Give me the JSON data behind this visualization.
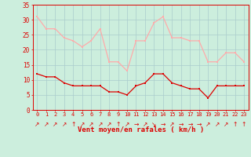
{
  "x": [
    0,
    1,
    2,
    3,
    4,
    5,
    6,
    7,
    8,
    9,
    10,
    11,
    12,
    13,
    14,
    15,
    16,
    17,
    18,
    19,
    20,
    21,
    22,
    23
  ],
  "wind_avg": [
    12,
    11,
    11,
    9,
    8,
    8,
    8,
    8,
    6,
    6,
    5,
    8,
    9,
    12,
    12,
    9,
    8,
    7,
    7,
    4,
    8,
    8,
    8,
    8
  ],
  "wind_gust": [
    31,
    27,
    27,
    24,
    23,
    21,
    23,
    27,
    16,
    16,
    13,
    23,
    23,
    29,
    31,
    24,
    24,
    23,
    23,
    16,
    16,
    19,
    19,
    16
  ],
  "avg_color": "#dd0000",
  "gust_color": "#ffaaaa",
  "bg_color": "#cceedd",
  "grid_color": "#aacccc",
  "xlabel": "Vent moyen/en rafales ( km/h )",
  "xlabel_color": "#dd0000",
  "tick_color": "#dd0000",
  "ylim": [
    0,
    35
  ],
  "yticks": [
    0,
    5,
    10,
    15,
    20,
    25,
    30,
    35
  ],
  "xlim": [
    -0.5,
    23.5
  ],
  "arrow_chars": [
    "↗",
    "↗",
    "↗",
    "↗",
    "↑",
    "↗",
    "↗",
    "↗",
    "↗",
    "↑",
    "↗",
    "→",
    "↗",
    "↘",
    "→",
    "↗",
    "→",
    "→",
    "→",
    "↗",
    "↗",
    "↗",
    "↑",
    "↑"
  ]
}
